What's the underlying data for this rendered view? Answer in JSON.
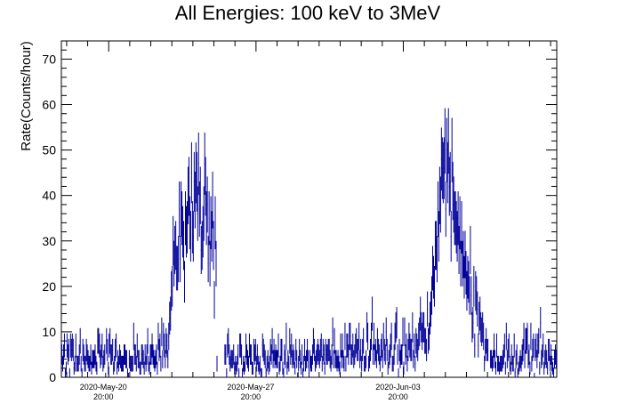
{
  "chart_data": {
    "type": "line",
    "title": "All Energies:  100 keV to 3MeV",
    "ylabel": "Rate(Counts/hour)",
    "xlabel": "",
    "xlim": [
      "2020-May-18 14:00",
      "2020-Jun-11 03:00"
    ],
    "ylim": [
      0,
      74
    ],
    "yticks": [
      0,
      10,
      20,
      30,
      40,
      50,
      60,
      70
    ],
    "xticks": [
      {
        "date": "2020-May-20",
        "time": "20:00"
      },
      {
        "date": "2020-May-27",
        "time": "20:00"
      },
      {
        "date": "2020-Jun-03",
        "time": "20:00"
      }
    ],
    "grid": false,
    "legend": "none",
    "color": "#000099",
    "series": [
      {
        "x_units": "date",
        "points": [
          {
            "x": "2020-May-18 14:00",
            "y": 5
          },
          {
            "x": "2020-May-19 14:00",
            "y": 4
          },
          {
            "x": "2020-May-20 14:00",
            "y": 5
          },
          {
            "x": "2020-May-21 14:00",
            "y": 4
          },
          {
            "x": "2020-May-22 14:00",
            "y": 5
          },
          {
            "x": "2020-May-23 14:00",
            "y": 5
          },
          {
            "x": "2020-May-23 23:00",
            "y": 28
          },
          {
            "x": "2020-May-24 14:00",
            "y": 35
          },
          {
            "x": "2020-May-25 02:00",
            "y": 40
          },
          {
            "x": "2020-May-25 12:00",
            "y": 35
          },
          {
            "x": "2020-May-25 20:00",
            "y": 30
          },
          {
            "x": "2020-May-26 12:00",
            "y": 5
          },
          {
            "x": "2020-May-27 14:00",
            "y": 4
          },
          {
            "x": "2020-May-28 14:00",
            "y": 5
          },
          {
            "x": "2020-May-29 14:00",
            "y": 4
          },
          {
            "x": "2020-May-30 14:00",
            "y": 5
          },
          {
            "x": "2020-May-31 14:00",
            "y": 5
          },
          {
            "x": "2020-Jun-01 14:00",
            "y": 5
          },
          {
            "x": "2020-Jun-02 14:00",
            "y": 5
          },
          {
            "x": "2020-Jun-03 14:00",
            "y": 6
          },
          {
            "x": "2020-Jun-04 14:00",
            "y": 8
          },
          {
            "x": "2020-Jun-05 02:00",
            "y": 12
          },
          {
            "x": "2020-Jun-05 14:00",
            "y": 38
          },
          {
            "x": "2020-Jun-06 00:00",
            "y": 45
          },
          {
            "x": "2020-Jun-06 12:00",
            "y": 32
          },
          {
            "x": "2020-Jun-07 02:00",
            "y": 18
          },
          {
            "x": "2020-Jun-07 20:00",
            "y": 6
          },
          {
            "x": "2020-Jun-08 14:00",
            "y": 4
          },
          {
            "x": "2020-Jun-09 14:00",
            "y": 5
          },
          {
            "x": "2020-Jun-10 14:00",
            "y": 4
          },
          {
            "x": "2020-Jun-11 03:00",
            "y": 5
          }
        ]
      }
    ]
  }
}
